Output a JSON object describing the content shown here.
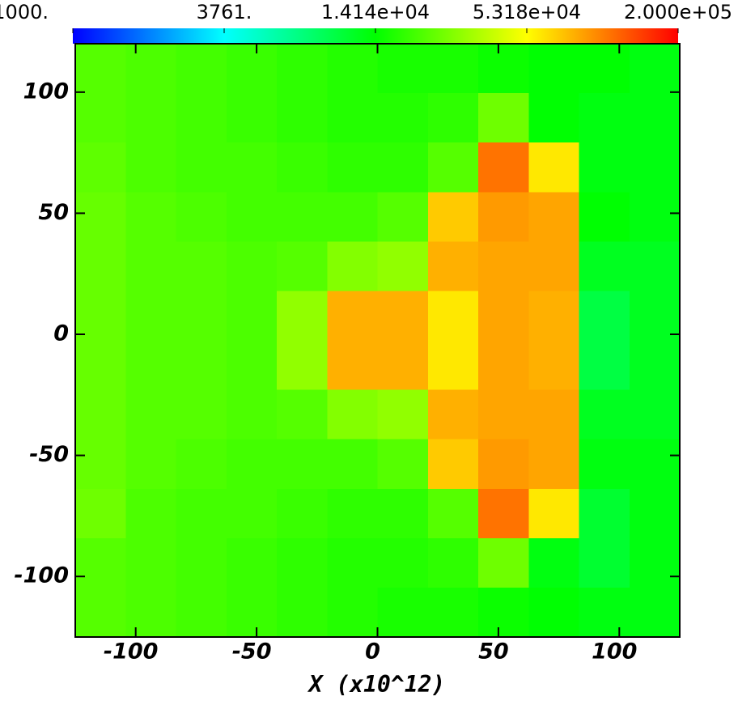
{
  "chart_data": {
    "type": "heatmap",
    "xlabel": "X (x10^12)",
    "xlim": [
      -125,
      125
    ],
    "ylim": [
      -125,
      120
    ],
    "xticks": [
      -100,
      -50,
      0,
      50,
      100
    ],
    "yticks": [
      -100,
      -50,
      0,
      50,
      100
    ],
    "colorscale_log": true,
    "colormap": [
      "#0000ff",
      "#00ffff",
      "#00ff00",
      "#ffff00",
      "#ff0000"
    ],
    "clim": [
      1000,
      200000
    ],
    "cticks": [
      {
        "value": 1000,
        "label": "1000."
      },
      {
        "value": 3761,
        "label": "3761."
      },
      {
        "value": 14140,
        "label": "1.414e+04"
      },
      {
        "value": 53180,
        "label": "5.318e+04"
      },
      {
        "value": 200000,
        "label": "2.000e+05"
      }
    ],
    "z": [
      [
        22000,
        21000,
        20000,
        19000,
        18000,
        17000,
        16000,
        16000,
        15000,
        14000,
        14000,
        13000
      ],
      [
        22000,
        21000,
        20000,
        19000,
        18000,
        17000,
        17000,
        18000,
        25000,
        14000,
        13000,
        13000
      ],
      [
        23000,
        21000,
        20000,
        20000,
        19000,
        18000,
        18000,
        22000,
        110000,
        60000,
        13000,
        13000
      ],
      [
        24000,
        22000,
        21000,
        20000,
        20000,
        20000,
        22000,
        70000,
        90000,
        85000,
        14000,
        13000
      ],
      [
        24000,
        22000,
        22000,
        21000,
        22000,
        28000,
        30000,
        80000,
        85000,
        85000,
        12000,
        12000
      ],
      [
        24000,
        22000,
        22000,
        21000,
        30000,
        80000,
        80000,
        60000,
        85000,
        80000,
        10000,
        12000
      ],
      [
        24000,
        22000,
        22000,
        21000,
        30000,
        80000,
        80000,
        60000,
        85000,
        80000,
        10000,
        12000
      ],
      [
        24000,
        22000,
        22000,
        21000,
        22000,
        28000,
        30000,
        80000,
        85000,
        85000,
        12000,
        12000
      ],
      [
        24000,
        22000,
        21000,
        20000,
        20000,
        20000,
        22000,
        70000,
        90000,
        85000,
        13000,
        13000
      ],
      [
        25000,
        21000,
        20000,
        20000,
        19000,
        18000,
        18000,
        22000,
        110000,
        60000,
        11000,
        13000
      ],
      [
        22000,
        21000,
        20000,
        19000,
        18000,
        17000,
        17000,
        18000,
        25000,
        13000,
        11000,
        13000
      ],
      [
        22000,
        21000,
        20000,
        19000,
        18000,
        17000,
        16000,
        16000,
        15000,
        14000,
        13000,
        13000
      ]
    ]
  }
}
